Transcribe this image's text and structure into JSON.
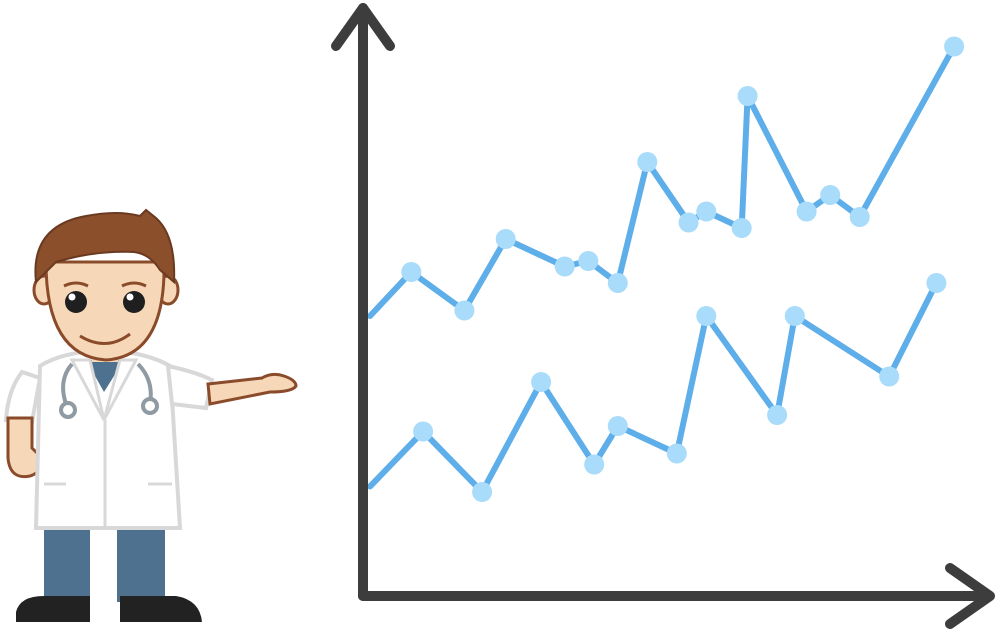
{
  "colors": {
    "axis": "#3d3d3d",
    "line": "#5eaeea",
    "marker": "#a9dcfa",
    "coat": "#ffffff",
    "coat_outline": "#d8d8d8",
    "skin": "#f6d7b8",
    "outline": "#8a4b2a",
    "hair": "#8b4f2c",
    "pants": "#4e7190",
    "shoes": "#222222",
    "stethoscope": "#8f9aa3"
  },
  "icons": {
    "figure": "doctor-cartoon-icon",
    "stethoscope": "stethoscope-icon"
  },
  "chart_data": {
    "type": "line",
    "title": "",
    "xlabel": "",
    "ylabel": "",
    "grid": false,
    "legend": "none",
    "xlim": [
      0,
      100
    ],
    "ylim": [
      0,
      100
    ],
    "x": [
      0,
      5,
      14,
      22,
      30,
      33,
      37,
      44,
      49,
      58,
      61,
      67,
      71,
      75,
      80,
      83,
      89,
      94,
      96
    ],
    "series": [
      {
        "points": [
          [
            0,
            48
          ],
          [
            7,
            56
          ],
          [
            16,
            49
          ],
          [
            23,
            62
          ],
          [
            33,
            57
          ],
          [
            37,
            58
          ],
          [
            42,
            54
          ],
          [
            47,
            76
          ],
          [
            54,
            65
          ],
          [
            57,
            67
          ],
          [
            63,
            64
          ],
          [
            64,
            88
          ],
          [
            74,
            67
          ],
          [
            78,
            70
          ],
          [
            83,
            66
          ],
          [
            99,
            97
          ]
        ]
      },
      {
        "points": [
          [
            0,
            17
          ],
          [
            9,
            27
          ],
          [
            19,
            16
          ],
          [
            29,
            36
          ],
          [
            38,
            21
          ],
          [
            42,
            28
          ],
          [
            52,
            23
          ],
          [
            57,
            48
          ],
          [
            69,
            30
          ],
          [
            72,
            48
          ],
          [
            88,
            37
          ],
          [
            96,
            54
          ]
        ]
      }
    ]
  }
}
